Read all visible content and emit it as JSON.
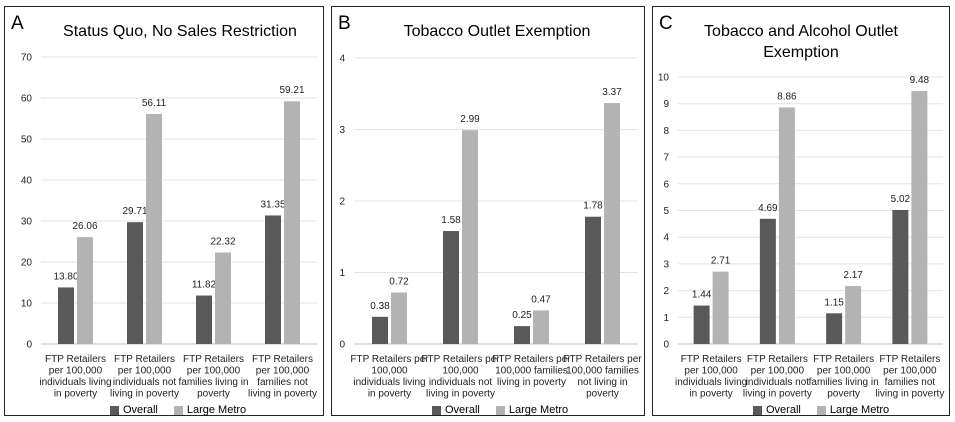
{
  "colors": {
    "overall": "#595959",
    "large_metro": "#b3b3b3"
  },
  "chart_data": [
    {
      "type": "bar",
      "panel_letter": "A",
      "title": "Status Quo, No Sales Restriction",
      "categories": [
        "FTP Retailers per 100,000 individuals living in poverty",
        "FTP Retailers per 100,000 individuals not living in poverty",
        "FTP Retailers per 100,000 families living in poverty",
        "FTP Retailers per 100,000 families not living in poverty"
      ],
      "category_lines": [
        [
          "FTP Retailers",
          "per 100,000",
          "individuals living",
          "in poverty"
        ],
        [
          "FTP Retailers",
          "per 100,000",
          "individuals not",
          "living in poverty"
        ],
        [
          "FTP Retailers",
          "per 100,000",
          "families living in",
          "poverty"
        ],
        [
          "FTP Retailers",
          "per 100,000",
          "families not",
          "living in poverty"
        ]
      ],
      "series": [
        {
          "name": "Overall",
          "values": [
            13.8,
            29.71,
            11.82,
            31.35
          ],
          "labels": [
            "13.80",
            "29.71",
            "11.82",
            "31.35"
          ]
        },
        {
          "name": "Large Metro",
          "values": [
            26.06,
            56.11,
            22.32,
            59.21
          ],
          "labels": [
            "26.06",
            "56.11",
            "22.32",
            "59.21"
          ]
        }
      ],
      "ylim": [
        0,
        70
      ],
      "yticks": [
        0,
        10,
        20,
        30,
        40,
        50,
        60,
        70
      ],
      "grid": true,
      "legend_position": "bottom"
    },
    {
      "type": "bar",
      "panel_letter": "B",
      "title": "Tobacco Outlet Exemption",
      "categories": [
        "FTP Retailers per 100,000 individuals living in poverty",
        "FTP Retailers per 100,000 individuals not living in poverty",
        "FTP Retailers per 100,000 families living in poverty",
        "FTP Retailers per 100,000 families not living in poverty"
      ],
      "category_lines": [
        [
          "FTP Retailers per",
          "100,000",
          "individuals living",
          "in poverty"
        ],
        [
          "FTP Retailers per",
          "100,000",
          "individuals not",
          "living in poverty"
        ],
        [
          "FTP Retailers per",
          "100,000 families",
          "living in poverty"
        ],
        [
          "FTP Retailers per",
          "100,000 families",
          "not living in",
          "poverty"
        ]
      ],
      "series": [
        {
          "name": "Overall",
          "values": [
            0.38,
            1.58,
            0.25,
            1.78
          ],
          "labels": [
            "0.38",
            "1.58",
            "0.25",
            "1.78"
          ]
        },
        {
          "name": "Large Metro",
          "values": [
            0.72,
            2.99,
            0.47,
            3.37
          ],
          "labels": [
            "0.72",
            "2.99",
            "0.47",
            "3.37"
          ]
        }
      ],
      "ylim": [
        0,
        4
      ],
      "yticks": [
        0,
        1,
        2,
        3,
        4
      ],
      "grid": true,
      "legend_position": "bottom"
    },
    {
      "type": "bar",
      "panel_letter": "C",
      "title": "Tobacco and Alcohol Outlet Exemption",
      "categories": [
        "FTP Retailers per 100,000 individuals living in poverty",
        "FTP Retailers per 100,000 individuals not living in poverty",
        "FTP Retailers per 100,000 families living in poverty",
        "FTP Retailers per 100,000 families not living in poverty"
      ],
      "category_lines": [
        [
          "FTP Retailers",
          "per 100,000",
          "individuals living",
          "in poverty"
        ],
        [
          "FTP Retailers",
          "per 100,000",
          "individuals not",
          "living in poverty"
        ],
        [
          "FTP Retailers",
          "per 100,000",
          "families living in",
          "poverty"
        ],
        [
          "FTP Retailers",
          "per 100,000",
          "families not",
          "living in poverty"
        ]
      ],
      "series": [
        {
          "name": "Overall",
          "values": [
            1.44,
            4.69,
            1.15,
            5.02
          ],
          "labels": [
            "1.44",
            "4.69",
            "1.15",
            "5.02"
          ]
        },
        {
          "name": "Large Metro",
          "values": [
            2.71,
            8.86,
            2.17,
            9.48
          ],
          "labels": [
            "2.71",
            "8.86",
            "2.17",
            "9.48"
          ]
        }
      ],
      "ylim": [
        0,
        10
      ],
      "yticks": [
        0,
        1,
        2,
        3,
        4,
        5,
        6,
        7,
        8,
        9,
        10
      ],
      "grid": true,
      "legend_position": "bottom"
    }
  ]
}
